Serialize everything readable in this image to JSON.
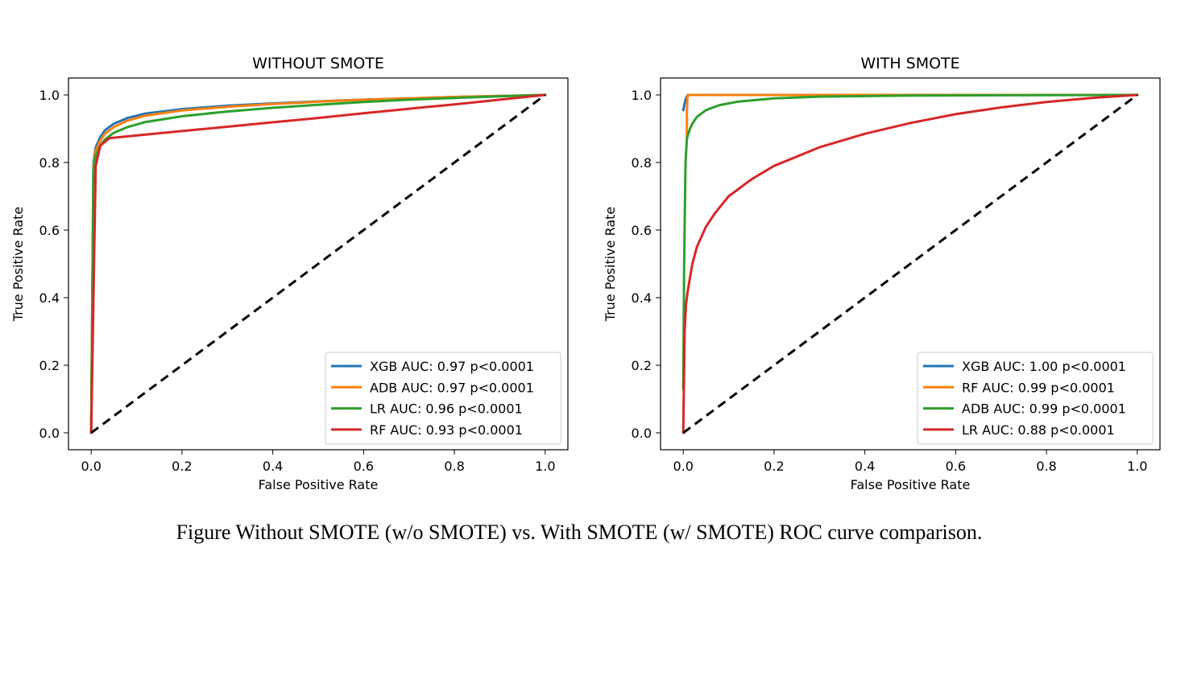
{
  "caption": "Figure Without SMOTE (w/o SMOTE) vs. With SMOTE (w/ SMOTE) ROC curve comparison.",
  "chart_data": [
    {
      "type": "line",
      "title": "WITHOUT SMOTE",
      "xlabel": "False Positive Rate",
      "ylabel": "True Positive Rate",
      "xlim": [
        -0.05,
        1.05
      ],
      "ylim": [
        -0.05,
        1.05
      ],
      "xticks": [
        "0.0",
        "0.2",
        "0.4",
        "0.6",
        "0.8",
        "1.0"
      ],
      "yticks": [
        "0.0",
        "0.2",
        "0.4",
        "0.6",
        "0.8",
        "1.0"
      ],
      "grid": false,
      "legend_position": "lower-right",
      "series": [
        {
          "name": "XGB AUC: 0.97 p<0.0001",
          "color": "#1f77b4",
          "x": [
            0,
            0.005,
            0.01,
            0.02,
            0.03,
            0.05,
            0.08,
            0.12,
            0.2,
            0.3,
            0.4,
            0.5,
            0.6,
            0.7,
            0.8,
            0.9,
            1.0
          ],
          "y": [
            0,
            0.8,
            0.845,
            0.875,
            0.895,
            0.915,
            0.932,
            0.945,
            0.958,
            0.968,
            0.975,
            0.981,
            0.986,
            0.99,
            0.994,
            0.997,
            1.0
          ]
        },
        {
          "name": "ADB AUC: 0.97 p<0.0001",
          "color": "#ff7f0e",
          "x": [
            0,
            0.005,
            0.01,
            0.02,
            0.03,
            0.05,
            0.08,
            0.12,
            0.2,
            0.3,
            0.4,
            0.5,
            0.6,
            0.7,
            0.8,
            0.9,
            1.0
          ],
          "y": [
            0,
            0.79,
            0.835,
            0.865,
            0.885,
            0.905,
            0.924,
            0.939,
            0.954,
            0.965,
            0.973,
            0.98,
            0.986,
            0.99,
            0.994,
            0.997,
            1.0
          ]
        },
        {
          "name": "LR AUC: 0.96 p<0.0001",
          "color": "#2ca02c",
          "x": [
            0,
            0.005,
            0.01,
            0.02,
            0.03,
            0.05,
            0.08,
            0.12,
            0.2,
            0.3,
            0.4,
            0.5,
            0.6,
            0.7,
            0.8,
            0.9,
            1.0
          ],
          "y": [
            0,
            0.78,
            0.82,
            0.85,
            0.868,
            0.888,
            0.905,
            0.92,
            0.937,
            0.951,
            0.962,
            0.971,
            0.979,
            0.986,
            0.991,
            0.996,
            1.0
          ]
        },
        {
          "name": "RF AUC: 0.93 p<0.0001",
          "color": "#d62728",
          "x": [
            0,
            0.01,
            0.02,
            0.04,
            0.1,
            0.2,
            0.3,
            0.4,
            0.5,
            0.6,
            0.7,
            0.8,
            0.9,
            1.0
          ],
          "y": [
            0,
            0.79,
            0.85,
            0.872,
            0.88,
            0.893,
            0.906,
            0.919,
            0.932,
            0.946,
            0.959,
            0.972,
            0.986,
            1.0
          ]
        }
      ],
      "baseline": {
        "x": [
          0,
          1
        ],
        "y": [
          0,
          1
        ],
        "color": "#000000",
        "style": "dashed"
      }
    },
    {
      "type": "line",
      "title": "WITH SMOTE",
      "xlabel": "False Positive Rate",
      "ylabel": "True Positive Rate",
      "xlim": [
        -0.05,
        1.05
      ],
      "ylim": [
        -0.05,
        1.05
      ],
      "xticks": [
        "0.0",
        "0.2",
        "0.4",
        "0.6",
        "0.8",
        "1.0"
      ],
      "yticks": [
        "0.0",
        "0.2",
        "0.4",
        "0.6",
        "0.8",
        "1.0"
      ],
      "grid": false,
      "legend_position": "lower-right",
      "series": [
        {
          "name": "XGB AUC: 1.00 p<0.0001",
          "color": "#1f77b4",
          "x": [
            0,
            0.003,
            0.006,
            0.01,
            1.0
          ],
          "y": [
            0.955,
            0.975,
            0.99,
            1.0,
            1.0
          ]
        },
        {
          "name": "RF AUC: 0.99 p<0.0001",
          "color": "#ff7f0e",
          "x": [
            0.008,
            0.008,
            0.009,
            0.01,
            1.0
          ],
          "y": [
            0.87,
            0.95,
            0.99,
            1.0,
            1.0
          ]
        },
        {
          "name": "ADB AUC: 0.99 p<0.0001",
          "color": "#2ca02c",
          "x": [
            0,
            0.002,
            0.005,
            0.008,
            0.01,
            0.015,
            0.02,
            0.03,
            0.05,
            0.08,
            0.12,
            0.2,
            0.3,
            0.5,
            0.7,
            1.0
          ],
          "y": [
            0.13,
            0.5,
            0.8,
            0.87,
            0.88,
            0.9,
            0.915,
            0.935,
            0.955,
            0.97,
            0.98,
            0.99,
            0.995,
            0.998,
            0.999,
            1.0
          ]
        },
        {
          "name": "LR AUC: 0.88 p<0.0001",
          "color": "#d62728",
          "x": [
            0,
            0.003,
            0.006,
            0.01,
            0.02,
            0.03,
            0.05,
            0.07,
            0.1,
            0.15,
            0.2,
            0.3,
            0.4,
            0.5,
            0.6,
            0.7,
            0.8,
            0.9,
            1.0
          ],
          "y": [
            0,
            0.3,
            0.38,
            0.42,
            0.5,
            0.55,
            0.61,
            0.65,
            0.7,
            0.75,
            0.79,
            0.845,
            0.885,
            0.917,
            0.943,
            0.963,
            0.979,
            0.991,
            1.0
          ]
        }
      ],
      "baseline": {
        "x": [
          0,
          1
        ],
        "y": [
          0,
          1
        ],
        "color": "#000000",
        "style": "dashed"
      }
    }
  ]
}
